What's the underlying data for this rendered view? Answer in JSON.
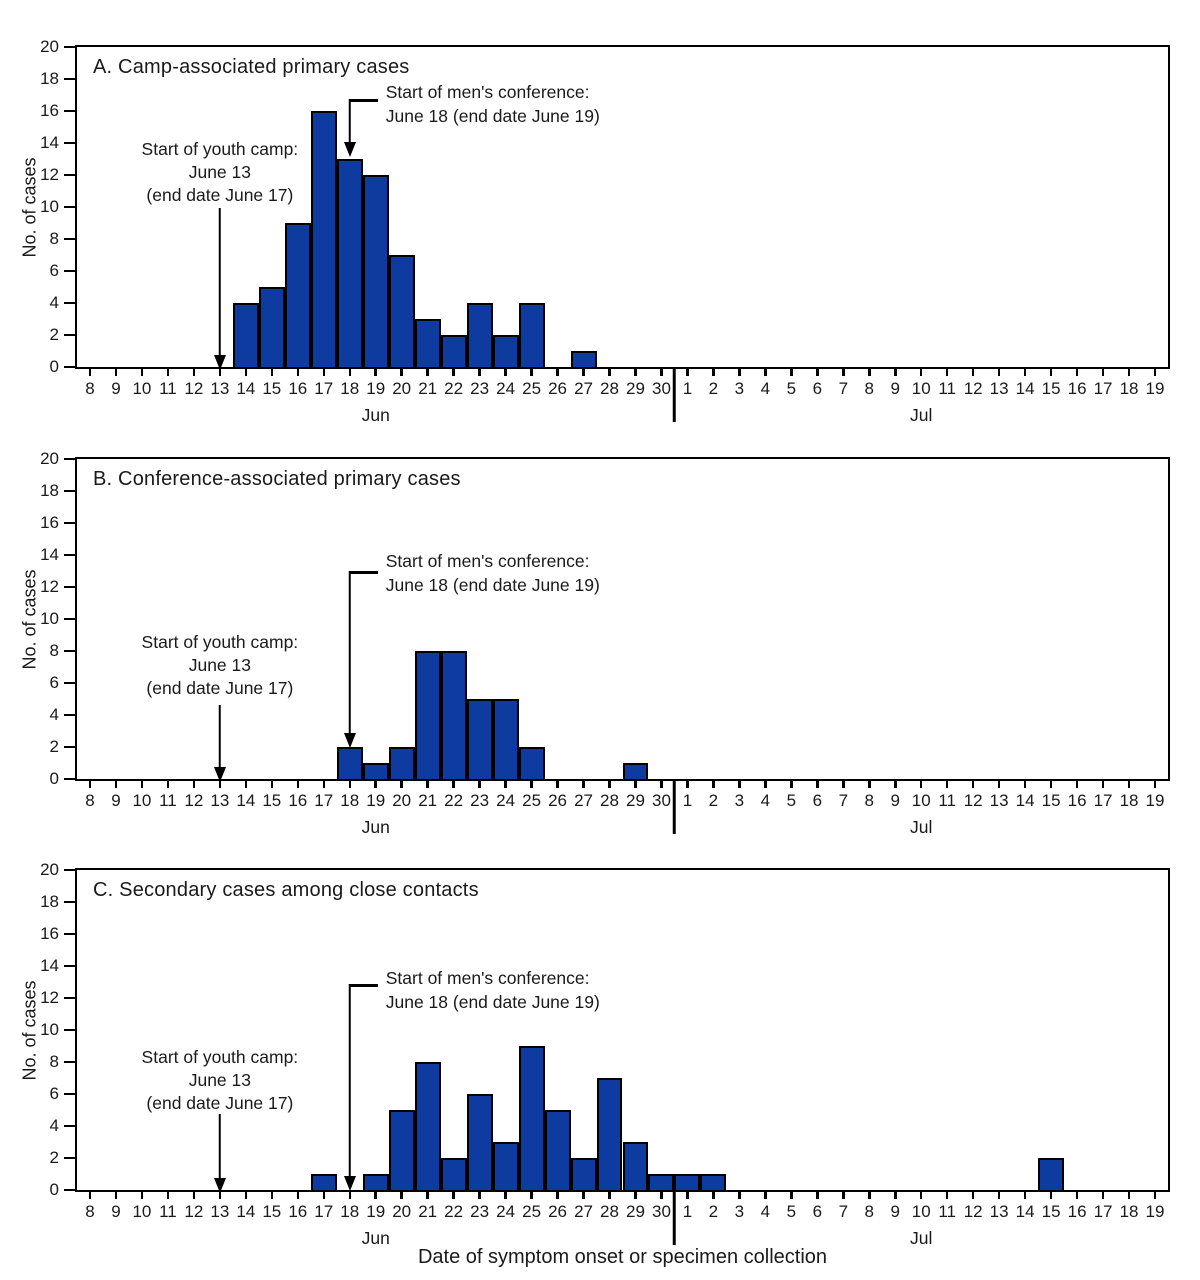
{
  "figure": {
    "x_axis_title": "Date of symptom onset or specimen collection",
    "y_axis_title": "No. of cases",
    "bar_color": "#0d3ba0",
    "axis_color": "#000000",
    "text_color": "#1a1a1a",
    "y_ticks": [
      0,
      2,
      4,
      6,
      8,
      10,
      12,
      14,
      16,
      18,
      20
    ],
    "months": [
      {
        "label": "Jun",
        "days": [
          "8",
          "9",
          "10",
          "11",
          "12",
          "13",
          "14",
          "15",
          "16",
          "17",
          "18",
          "19",
          "20",
          "21",
          "22",
          "23",
          "24",
          "25",
          "26",
          "27",
          "28",
          "29",
          "30"
        ]
      },
      {
        "label": "Jul",
        "days": [
          "1",
          "2",
          "3",
          "4",
          "5",
          "6",
          "7",
          "8",
          "9",
          "10",
          "11",
          "12",
          "13",
          "14",
          "15",
          "16",
          "17",
          "18",
          "19"
        ]
      }
    ],
    "annotations": [
      {
        "id": "youth-camp",
        "target_date": "June 13",
        "lines": [
          "Start of youth camp:",
          "June 13",
          "(end date June 17)"
        ]
      },
      {
        "id": "mens-conference",
        "target_date": "June 18",
        "lines": [
          "Start of men's conference:",
          "June 18 (end date June 19)"
        ]
      }
    ]
  },
  "chart_data": [
    {
      "type": "bar",
      "title": "A. Camp-associated primary cases",
      "ylabel": "No. of cases",
      "ylim": [
        0,
        20
      ],
      "grid": false,
      "x_range": "Jun 8 - Jul 19",
      "values": [
        0,
        0,
        0,
        0,
        0,
        0,
        4,
        5,
        9,
        16,
        13,
        12,
        7,
        3,
        2,
        4,
        2,
        4,
        0,
        1,
        0,
        0,
        0,
        0,
        0,
        0,
        0,
        0,
        0,
        0,
        0,
        0,
        0,
        0,
        0,
        0,
        0,
        0,
        0,
        0,
        0,
        0
      ],
      "cases_by_date": {
        "Jun 14": 4,
        "Jun 15": 5,
        "Jun 16": 9,
        "Jun 17": 16,
        "Jun 18": 13,
        "Jun 19": 12,
        "Jun 20": 7,
        "Jun 21": 3,
        "Jun 22": 2,
        "Jun 23": 4,
        "Jun 24": 2,
        "Jun 25": 4,
        "Jun 27": 1
      }
    },
    {
      "type": "bar",
      "title": "B. Conference-associated primary cases",
      "ylabel": "No. of cases",
      "ylim": [
        0,
        20
      ],
      "grid": false,
      "x_range": "Jun 8 - Jul 19",
      "values": [
        0,
        0,
        0,
        0,
        0,
        0,
        0,
        0,
        0,
        0,
        2,
        1,
        2,
        8,
        8,
        5,
        5,
        2,
        0,
        0,
        0,
        1,
        0,
        0,
        0,
        0,
        0,
        0,
        0,
        0,
        0,
        0,
        0,
        0,
        0,
        0,
        0,
        0,
        0,
        0,
        0,
        0
      ],
      "cases_by_date": {
        "Jun 18": 2,
        "Jun 19": 1,
        "Jun 20": 2,
        "Jun 21": 8,
        "Jun 22": 8,
        "Jun 23": 5,
        "Jun 24": 5,
        "Jun 25": 2,
        "Jun 29": 1
      }
    },
    {
      "type": "bar",
      "title": "C. Secondary cases among close contacts",
      "ylabel": "No. of cases",
      "ylim": [
        0,
        20
      ],
      "grid": false,
      "x_range": "Jun 8 - Jul 19",
      "values": [
        0,
        0,
        0,
        0,
        0,
        0,
        0,
        0,
        0,
        1,
        0,
        1,
        5,
        8,
        2,
        6,
        3,
        9,
        5,
        2,
        7,
        3,
        1,
        1,
        1,
        0,
        0,
        0,
        0,
        0,
        0,
        0,
        0,
        0,
        0,
        0,
        0,
        2,
        0,
        0,
        0,
        0
      ],
      "cases_by_date": {
        "Jun 17": 1,
        "Jun 19": 1,
        "Jun 20": 5,
        "Jun 21": 8,
        "Jun 22": 2,
        "Jun 23": 6,
        "Jun 24": 3,
        "Jun 25": 9,
        "Jun 26": 5,
        "Jun 27": 2,
        "Jun 28": 7,
        "Jun 29": 3,
        "Jun 30": 1,
        "Jul 1": 1,
        "Jul 2": 1,
        "Jul 15": 2
      }
    }
  ]
}
